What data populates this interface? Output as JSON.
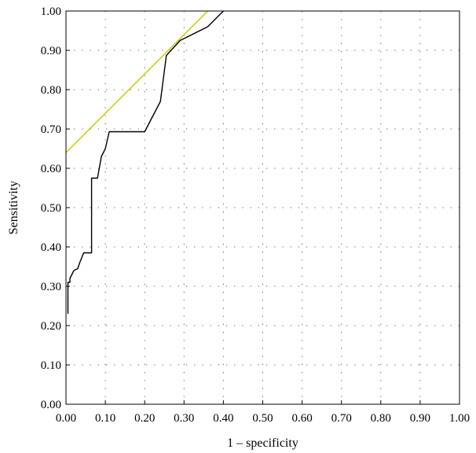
{
  "chart_data": {
    "type": "line",
    "title": "",
    "xlabel": "1 – specificity",
    "ylabel": "Sensitivity",
    "xlim": [
      0,
      1
    ],
    "ylim": [
      0,
      1
    ],
    "x_ticks": [
      "0.00",
      "0.10",
      "0.20",
      "0.30",
      "0.40",
      "0.50",
      "0.60",
      "0.70",
      "0.80",
      "0.90",
      "1.00"
    ],
    "y_ticks": [
      "0.00",
      "0.10",
      "0.20",
      "0.30",
      "0.40",
      "0.50",
      "0.60",
      "0.70",
      "0.80",
      "0.90",
      "1.00"
    ],
    "grid": "dotted",
    "legend": "none",
    "series": [
      {
        "color": "#000000",
        "x": [
          0.005,
          0.005,
          0.01,
          0.01,
          0.02,
          0.03,
          0.035,
          0.045,
          0.06,
          0.065,
          0.065,
          0.08,
          0.09,
          0.1,
          0.11,
          0.2,
          0.24,
          0.255,
          0.29,
          0.36,
          0.4
        ],
        "y": [
          0.23,
          0.31,
          0.31,
          0.32,
          0.34,
          0.345,
          0.36,
          0.385,
          0.385,
          0.385,
          0.575,
          0.575,
          0.63,
          0.65,
          0.693,
          0.693,
          0.77,
          0.887,
          0.925,
          0.96,
          1.0
        ]
      },
      {
        "color": "#c8c800",
        "x": [
          0.0,
          0.36
        ],
        "y": [
          0.64,
          1.0
        ]
      }
    ]
  }
}
